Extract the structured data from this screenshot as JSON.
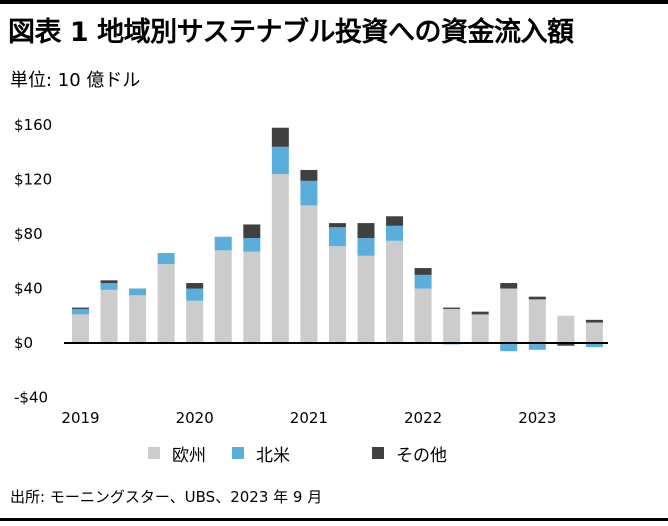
{
  "header": {
    "title": "図表 1 地域別サステナブル投資への資金流入額",
    "unit": "単位: 10 億ドル"
  },
  "footer": {
    "source": "出所: モーニングスター、UBS、2023 年 9 月"
  },
  "colors": {
    "europe": "#cccccc",
    "north_america": "#5aaedc",
    "other": "#404040",
    "axis": "#000000"
  },
  "chart_data": {
    "type": "bar",
    "stacked": true,
    "title": "",
    "xlabel": "",
    "ylabel": "",
    "ylim": [
      -40,
      160
    ],
    "y_ticks": [
      -40,
      0,
      40,
      80,
      120,
      160
    ],
    "y_tick_labels": [
      "-$40",
      "$0",
      "$40",
      "$80",
      "$120",
      "$160"
    ],
    "x_tick_labels": [
      "2019",
      "2020",
      "2021",
      "2022",
      "2023"
    ],
    "categories": [
      "2019Q1",
      "2019Q2",
      "2019Q3",
      "2019Q4",
      "2020Q1",
      "2020Q2",
      "2020Q3",
      "2020Q4",
      "2021Q1",
      "2021Q2",
      "2021Q3",
      "2021Q4",
      "2022Q1",
      "2022Q2",
      "2022Q3",
      "2022Q4",
      "2023Q1",
      "2023Q2",
      "2023Q3"
    ],
    "series": [
      {
        "name": "欧州",
        "color": "#cccccc",
        "values": [
          21,
          39,
          35,
          58,
          31,
          68,
          67,
          124,
          101,
          71,
          64,
          75,
          40,
          25,
          21,
          40,
          32,
          20,
          15
        ]
      },
      {
        "name": "北米",
        "color": "#5aaedc",
        "values": [
          4,
          5,
          5,
          8,
          9,
          10,
          10,
          20,
          18,
          14,
          13,
          11,
          10,
          -1,
          0,
          -6,
          -5,
          0,
          -3
        ]
      },
      {
        "name": "その他",
        "color": "#404040",
        "values": [
          1,
          2,
          0,
          0,
          4,
          0,
          10,
          14,
          8,
          3,
          11,
          7,
          5,
          1,
          2,
          4,
          2,
          -2,
          2
        ]
      }
    ],
    "legend_position": "bottom",
    "grid": false
  }
}
